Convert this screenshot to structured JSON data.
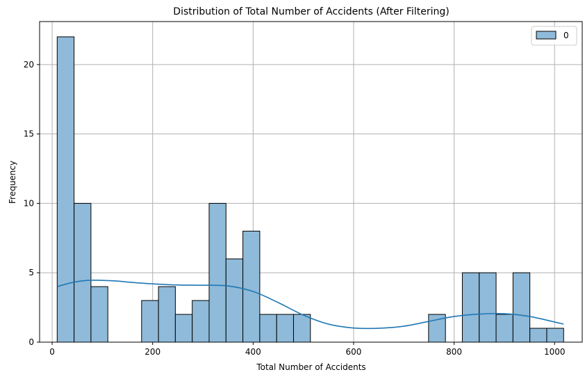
{
  "chart_data": {
    "type": "bar",
    "title": "Distribution of Total Number of Accidents (After Filtering)",
    "xlabel": "Total Number of Accidents",
    "ylabel": "Frequency",
    "xlim": [
      -25,
      1055
    ],
    "ylim": [
      0,
      23.1
    ],
    "x_ticks": [
      0,
      200,
      400,
      600,
      800,
      1000
    ],
    "y_ticks": [
      0,
      5,
      10,
      15,
      20
    ],
    "grid": true,
    "legend": {
      "placement": "top-right",
      "entries": [
        "0"
      ]
    },
    "bar_color": "#8fbad9",
    "bar_edge_color": "#000000",
    "kde_color": "#1f77b4",
    "bins": [
      {
        "x0": 10,
        "x1": 43.6,
        "count": 22
      },
      {
        "x0": 43.6,
        "x1": 77.2,
        "count": 10
      },
      {
        "x0": 77.2,
        "x1": 110.8,
        "count": 4
      },
      {
        "x0": 110.8,
        "x1": 144.4,
        "count": 0
      },
      {
        "x0": 144.4,
        "x1": 178,
        "count": 0
      },
      {
        "x0": 178,
        "x1": 211.6,
        "count": 3
      },
      {
        "x0": 211.6,
        "x1": 245.2,
        "count": 4
      },
      {
        "x0": 245.2,
        "x1": 278.8,
        "count": 2
      },
      {
        "x0": 278.8,
        "x1": 312.4,
        "count": 3
      },
      {
        "x0": 312.4,
        "x1": 346,
        "count": 10
      },
      {
        "x0": 346,
        "x1": 379.6,
        "count": 6
      },
      {
        "x0": 379.6,
        "x1": 413.2,
        "count": 8
      },
      {
        "x0": 413.2,
        "x1": 446.8,
        "count": 2
      },
      {
        "x0": 446.8,
        "x1": 480.4,
        "count": 2
      },
      {
        "x0": 480.4,
        "x1": 514,
        "count": 2
      },
      {
        "x0": 514,
        "x1": 547.6,
        "count": 0
      },
      {
        "x0": 547.6,
        "x1": 581.2,
        "count": 0
      },
      {
        "x0": 581.2,
        "x1": 614.8,
        "count": 0
      },
      {
        "x0": 614.8,
        "x1": 648.4,
        "count": 0
      },
      {
        "x0": 648.4,
        "x1": 682,
        "count": 0
      },
      {
        "x0": 682,
        "x1": 715.6,
        "count": 0
      },
      {
        "x0": 715.6,
        "x1": 749.2,
        "count": 0
      },
      {
        "x0": 749.2,
        "x1": 782.8,
        "count": 2
      },
      {
        "x0": 782.8,
        "x1": 816.4,
        "count": 0
      },
      {
        "x0": 816.4,
        "x1": 850,
        "count": 5
      },
      {
        "x0": 850,
        "x1": 883.6,
        "count": 5
      },
      {
        "x0": 883.6,
        "x1": 917.2,
        "count": 2
      },
      {
        "x0": 917.2,
        "x1": 950.8,
        "count": 5
      },
      {
        "x0": 950.8,
        "x1": 984.4,
        "count": 1
      },
      {
        "x0": 984.4,
        "x1": 1018,
        "count": 1
      }
    ],
    "kde_curve": {
      "x": [
        10,
        40,
        70,
        100,
        130,
        160,
        200,
        250,
        300,
        350,
        400,
        450,
        500,
        550,
        600,
        650,
        700,
        750,
        800,
        850,
        900,
        950,
        1000,
        1018
      ],
      "y": [
        4.0,
        4.3,
        4.45,
        4.45,
        4.4,
        4.3,
        4.2,
        4.12,
        4.1,
        4.05,
        3.65,
        2.85,
        1.95,
        1.3,
        1.02,
        1.0,
        1.15,
        1.5,
        1.85,
        2.02,
        2.05,
        1.85,
        1.45,
        1.3
      ]
    }
  }
}
